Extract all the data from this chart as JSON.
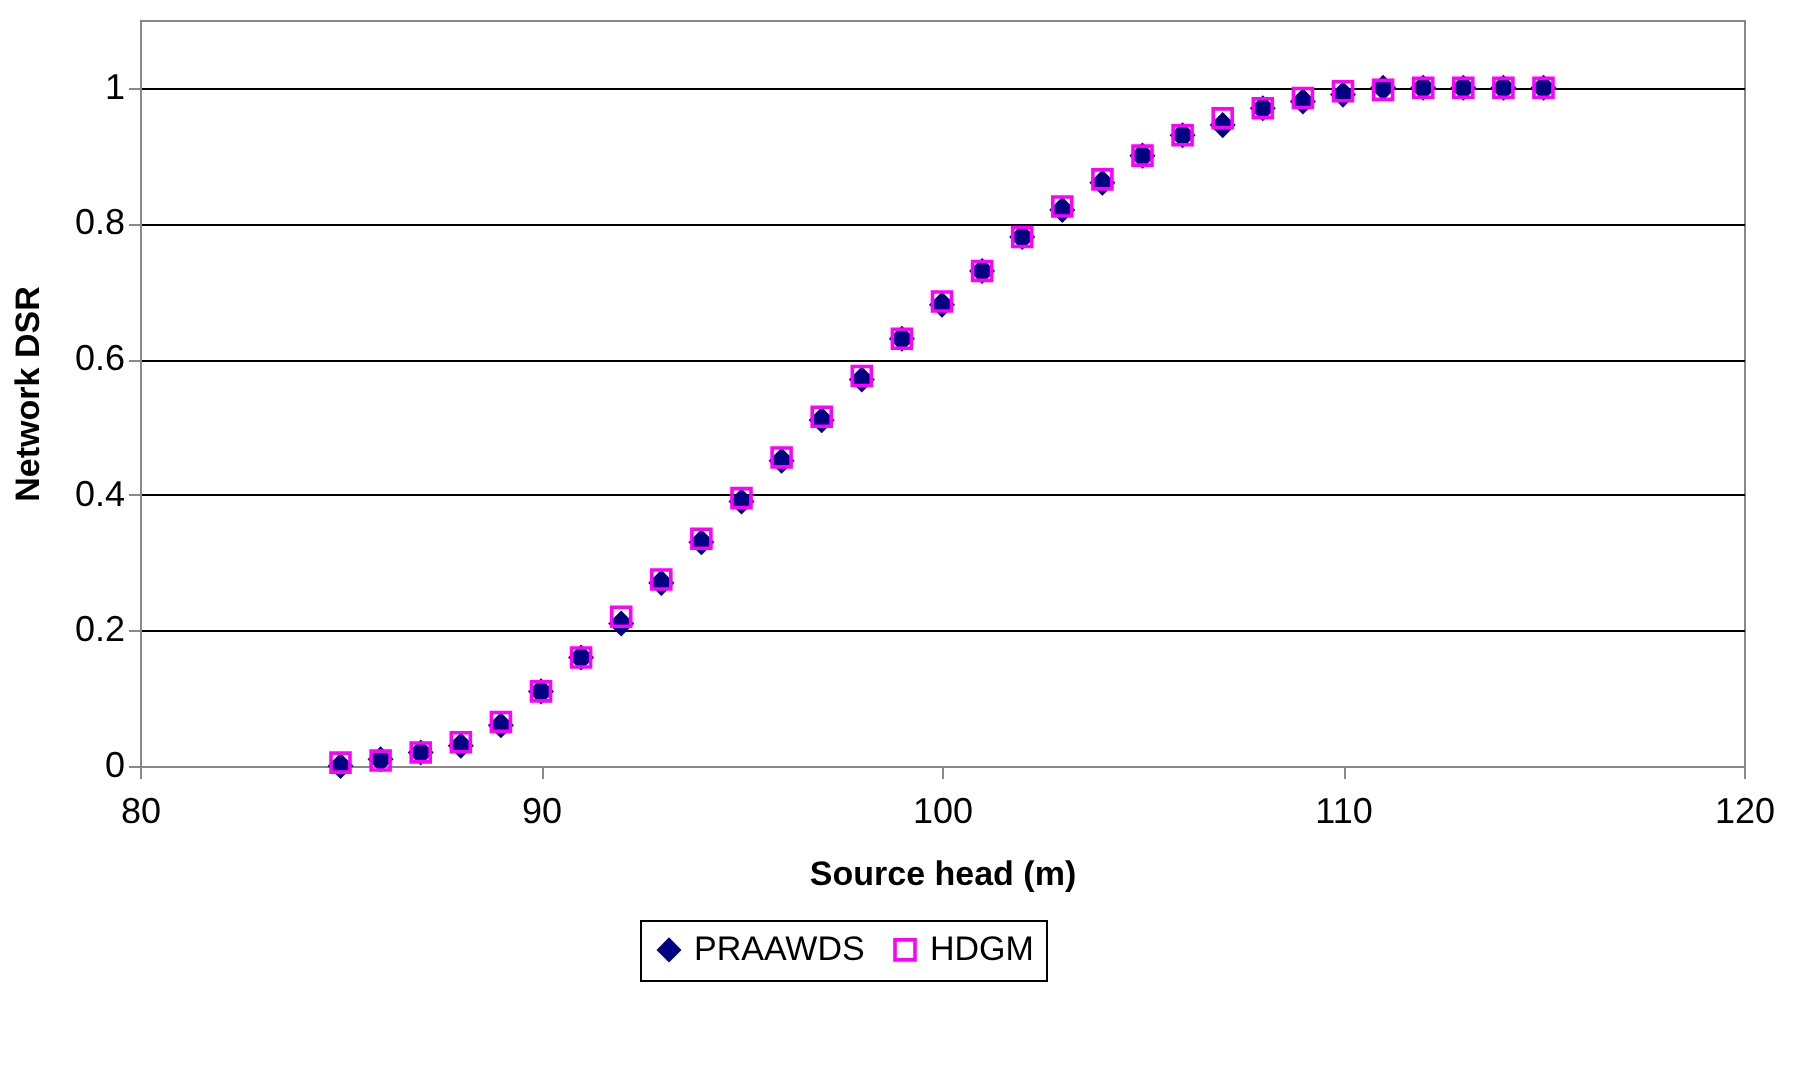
{
  "chart_data": {
    "type": "scatter",
    "xlabel": "Source head (m)",
    "ylabel": "Network DSR",
    "x": [
      85,
      86,
      87,
      88,
      89,
      90,
      91,
      92,
      93,
      94,
      95,
      96,
      97,
      98,
      99,
      100,
      101,
      102,
      103,
      104,
      105,
      106,
      107,
      108,
      109,
      110,
      111,
      112,
      113,
      114,
      115
    ],
    "series": [
      {
        "name": "PRAAWDS",
        "color": "#000080",
        "marker": "diamond",
        "values": [
          0.0,
          0.01,
          0.02,
          0.03,
          0.06,
          0.11,
          0.16,
          0.21,
          0.27,
          0.33,
          0.39,
          0.45,
          0.51,
          0.57,
          0.63,
          0.68,
          0.73,
          0.78,
          0.82,
          0.86,
          0.9,
          0.93,
          0.945,
          0.97,
          0.98,
          0.99,
          1.0,
          1.0,
          1.0,
          1.0,
          1.0
        ]
      },
      {
        "name": "HDGM",
        "color": "#ff00ff",
        "marker": "square",
        "values": [
          0.005,
          0.008,
          0.02,
          0.035,
          0.065,
          0.11,
          0.16,
          0.22,
          0.275,
          0.335,
          0.395,
          0.455,
          0.515,
          0.575,
          0.63,
          0.685,
          0.73,
          0.78,
          0.825,
          0.865,
          0.9,
          0.93,
          0.955,
          0.97,
          0.985,
          0.995,
          0.997,
          1.0,
          1.0,
          1.0,
          1.0
        ]
      }
    ],
    "xlim": [
      80,
      120
    ],
    "xticks": [
      80,
      90,
      100,
      110,
      120
    ],
    "ylim": [
      0,
      1.1
    ],
    "yticks": [
      0,
      0.2,
      0.4,
      0.6,
      0.8,
      1
    ],
    "grid": "y",
    "legend": "bottom"
  }
}
